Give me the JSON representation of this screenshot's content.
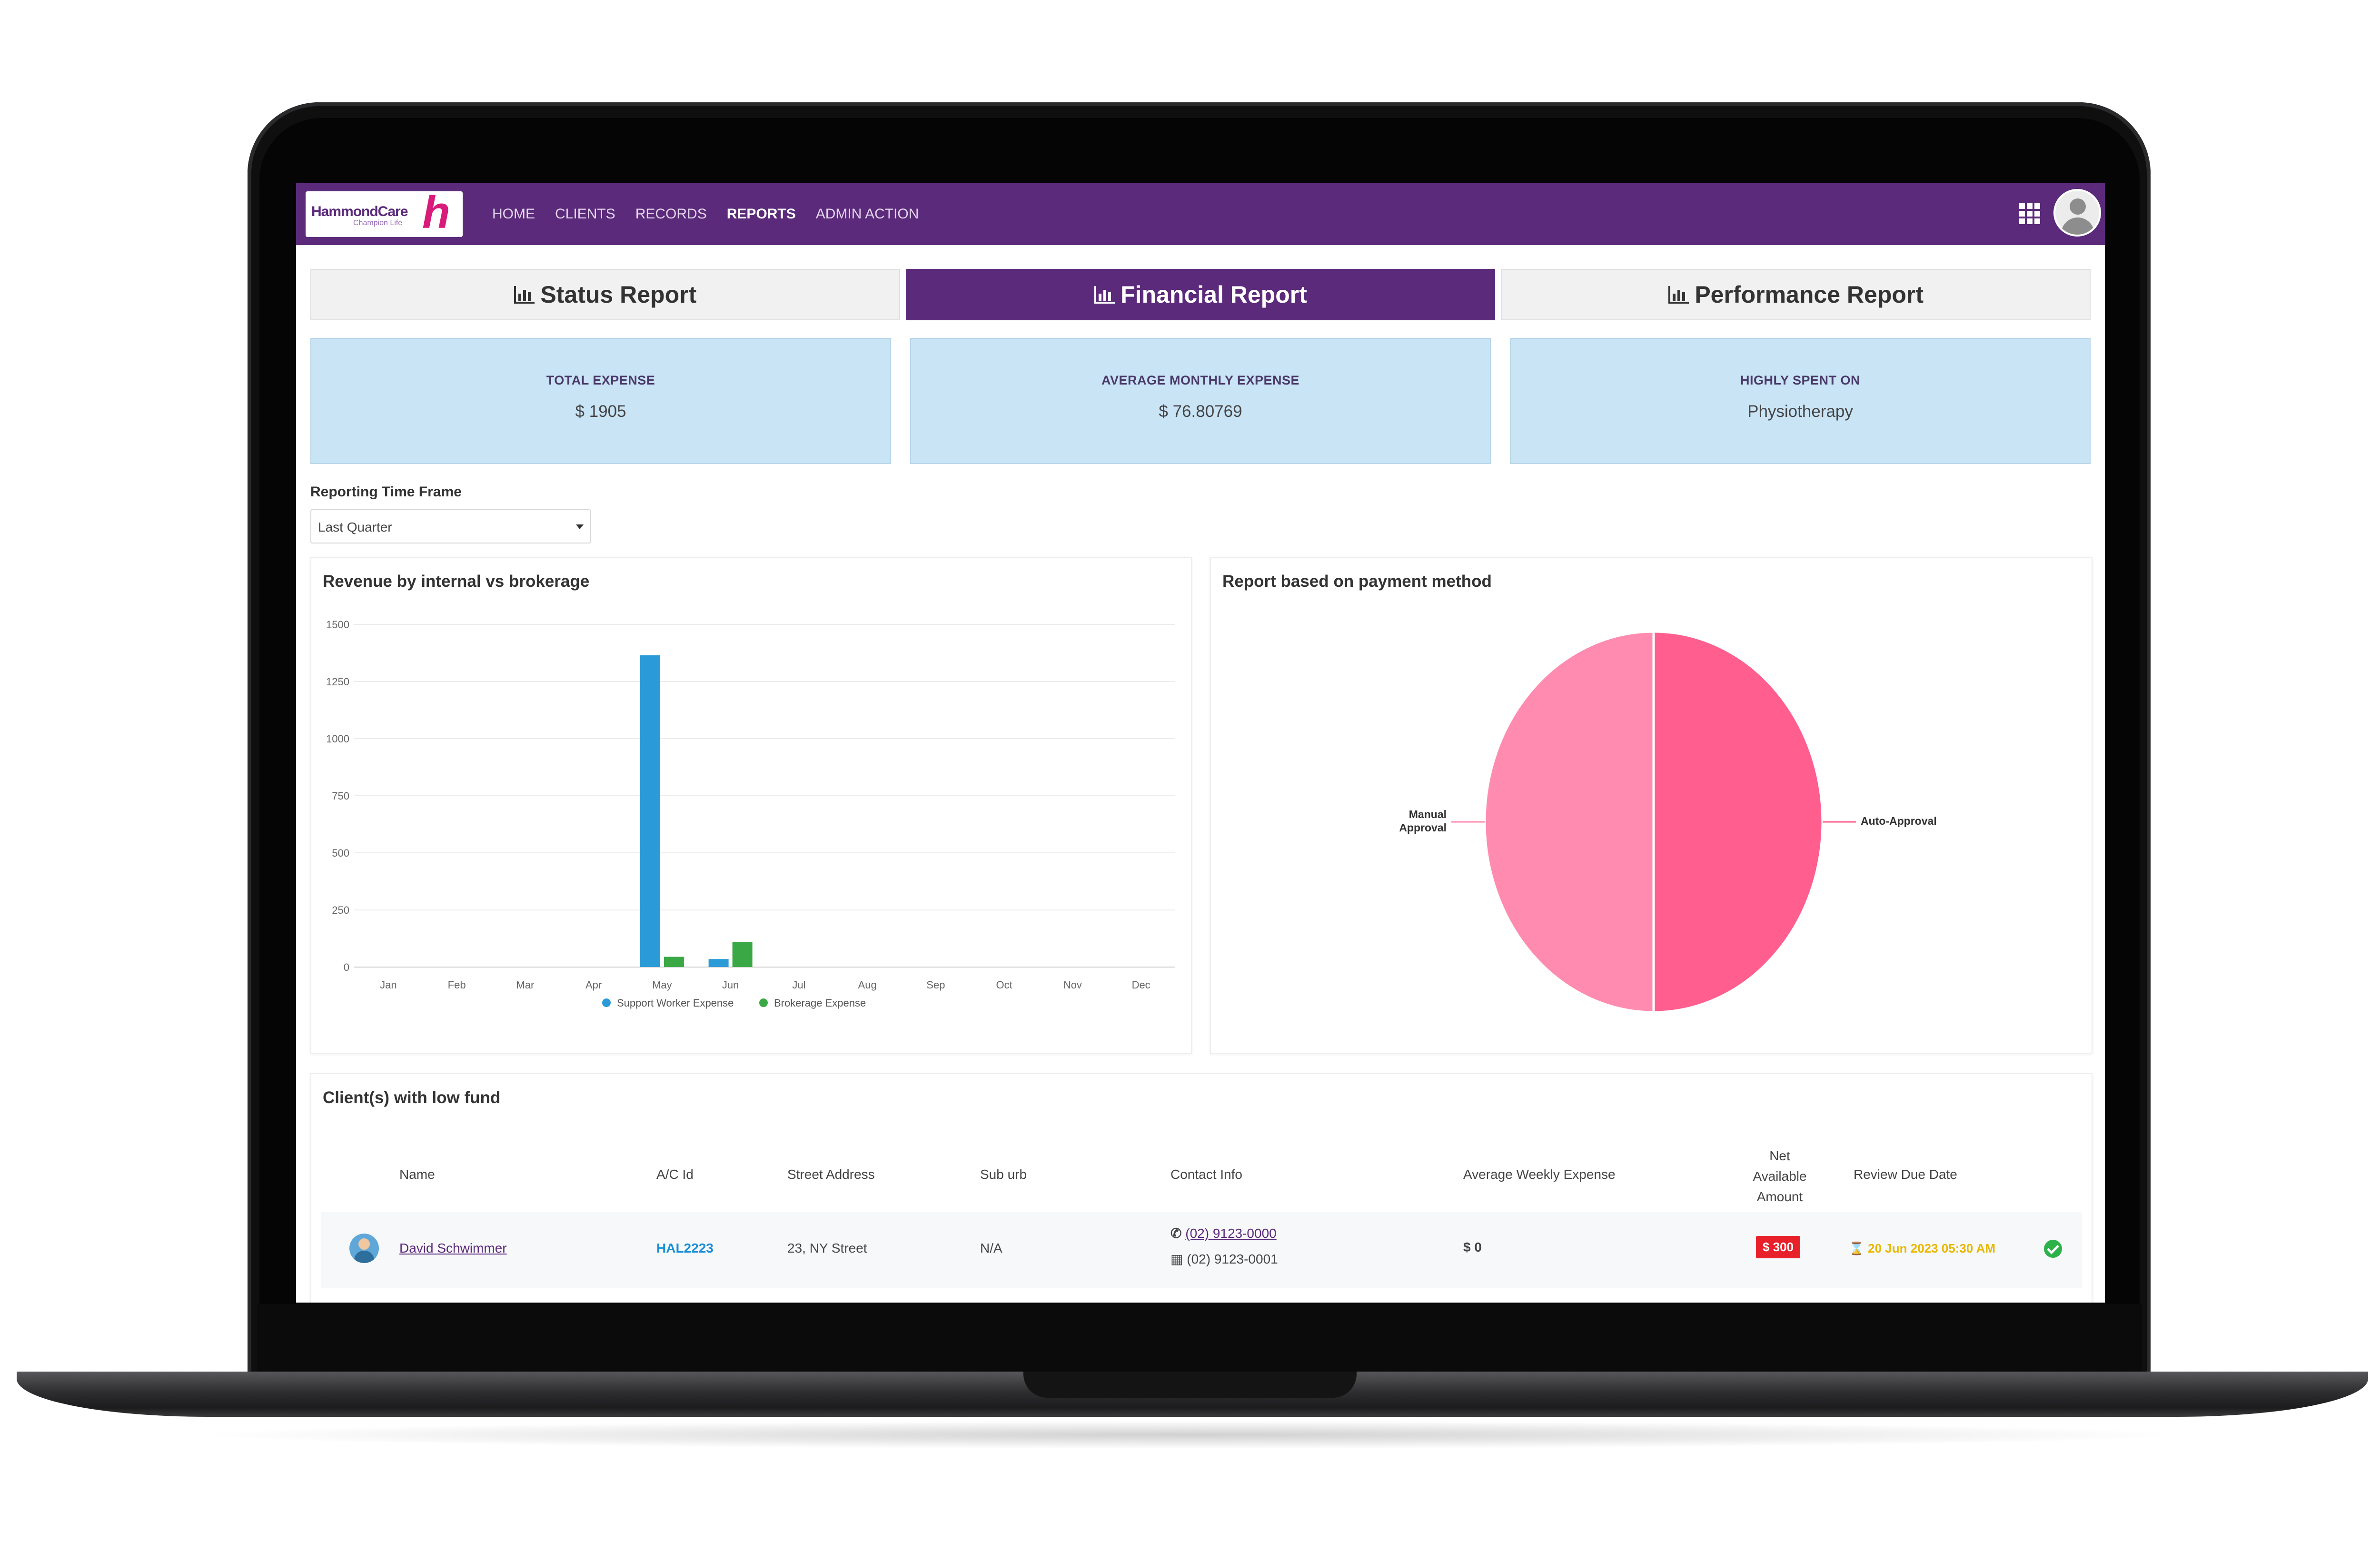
{
  "app": {
    "logo_text": "HammondCare",
    "logo_tagline": "Champion Life",
    "nav": [
      {
        "label": "HOME"
      },
      {
        "label": "CLIENTS"
      },
      {
        "label": "RECORDS"
      },
      {
        "label": "REPORTS",
        "active": true
      },
      {
        "label": "ADMIN ACTION"
      }
    ],
    "brand_color": "#5b2a7a"
  },
  "tabs": [
    {
      "label": "Status Report"
    },
    {
      "label": "Financial Report",
      "active": true
    },
    {
      "label": "Performance Report"
    }
  ],
  "cards": [
    {
      "label": "TOTAL EXPENSE",
      "value": "$ 1905"
    },
    {
      "label": "AVERAGE MONTHLY EXPENSE",
      "value": "$ 76.80769"
    },
    {
      "label": "HIGHLY SPENT ON",
      "value": "Physiotherapy"
    }
  ],
  "timeframe": {
    "label": "Reporting Time Frame",
    "selected": "Last Quarter"
  },
  "chart_data": [
    {
      "type": "bar",
      "title": "Revenue by internal vs brokerage",
      "categories": [
        "Jan",
        "Feb",
        "Mar",
        "Apr",
        "May",
        "Jun",
        "Jul",
        "Aug",
        "Sep",
        "Oct",
        "Nov",
        "Dec"
      ],
      "yticks": [
        "0",
        "250",
        "500",
        "750",
        "1000",
        "1250",
        "1500"
      ],
      "ylim": [
        0,
        1500
      ],
      "grid": true,
      "legend_position": "bottom",
      "series": [
        {
          "name": "Support Worker Expense",
          "color": "#2b9bd8",
          "values": [
            0,
            0,
            0,
            0,
            1365,
            35,
            0,
            0,
            0,
            0,
            0,
            0
          ]
        },
        {
          "name": "Brokerage Expense",
          "color": "#3aa845",
          "values": [
            0,
            0,
            0,
            0,
            45,
            110,
            0,
            0,
            0,
            0,
            0,
            0
          ]
        }
      ]
    },
    {
      "type": "pie",
      "title": "Report based on payment method",
      "slices": [
        {
          "label": "Auto-Approval",
          "value": 50,
          "color": "#ff5e8e"
        },
        {
          "label": "Manual Approval",
          "value": 50,
          "color": "#ff8cb0"
        }
      ]
    }
  ],
  "table": {
    "title": "Client(s) with low fund",
    "headers": {
      "name": "Name",
      "acid": "A/C Id",
      "street": "Street Address",
      "suburb": "Sub urb",
      "contact": "Contact Info",
      "avg_weekly": "Average Weekly Expense",
      "net_available_1": "Net",
      "net_available_2": "Available",
      "net_available_3": "Amount",
      "review_due": "Review Due Date"
    },
    "rows": [
      {
        "name": "David Schwimmer",
        "acid": "HAL2223",
        "street": "23, NY Street",
        "suburb": "N/A",
        "phone": "(02) 9123-0000",
        "work_phone": "(02) 9123-0001",
        "avg_weekly": "$ 0",
        "net_available": "$ 300",
        "review_due": "20 Jun 2023 05:30 AM"
      }
    ]
  }
}
